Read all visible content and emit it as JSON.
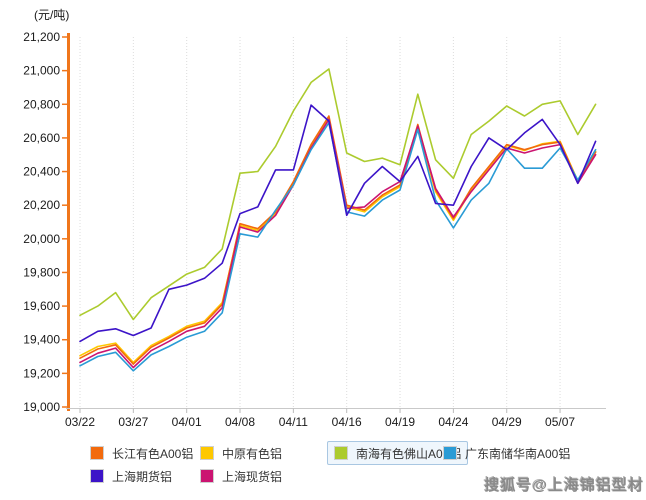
{
  "unit_label": "(元/吨)",
  "watermark": "搜狐号@上海锦铝型材",
  "axis": {
    "y_axis_color": "#F0761B",
    "x_axis_color": "#C9C9C9",
    "grid_color": "#DCDCDC",
    "text_color": "#1A1A1A"
  },
  "chart_data": {
    "type": "line",
    "title": "",
    "ylabel": "(元/吨)",
    "ylim": [
      19000,
      21200
    ],
    "ytick_step": 200,
    "y_ticks": [
      "19,000",
      "19,200",
      "19,400",
      "19,600",
      "19,800",
      "20,000",
      "20,200",
      "20,400",
      "20,600",
      "20,800",
      "21,000",
      "21,200"
    ],
    "x_labels": [
      "03/22",
      "03/27",
      "04/01",
      "04/08",
      "04/11",
      "04/16",
      "04/19",
      "04/24",
      "04/29",
      "05/07"
    ],
    "x_label_indices": [
      0,
      3,
      6,
      9,
      12,
      15,
      18,
      21,
      24,
      27
    ],
    "grid": "vertical-dotted",
    "legend_position": "bottom",
    "series": [
      {
        "name": "长江有色A00铝",
        "color": "#F26A0D",
        "highlighted": false,
        "values": [
          19290,
          19345,
          19370,
          19255,
          19355,
          19410,
          19470,
          19500,
          19610,
          20090,
          20060,
          20160,
          20340,
          20560,
          20730,
          20200,
          20170,
          20260,
          20320,
          20680,
          20290,
          20120,
          20300,
          20430,
          20560,
          20530,
          20560,
          20575,
          20340,
          20515
        ]
      },
      {
        "name": "中原有色铝",
        "color": "#FEC800",
        "highlighted": false,
        "values": [
          19305,
          19360,
          19380,
          19265,
          19365,
          19420,
          19480,
          19510,
          19620,
          20080,
          20050,
          20150,
          20330,
          20550,
          20720,
          20190,
          20160,
          20250,
          20310,
          20660,
          20280,
          20110,
          20290,
          20420,
          20555,
          20525,
          20565,
          20580,
          20345,
          20520
        ]
      },
      {
        "name": "南海有色佛山A00铝",
        "color": "#ACCB2E",
        "highlighted": true,
        "values": [
          19545,
          19600,
          19680,
          19520,
          19650,
          19720,
          19790,
          19830,
          19940,
          20390,
          20400,
          20550,
          20760,
          20930,
          21010,
          20510,
          20460,
          20480,
          20440,
          20860,
          20470,
          20360,
          20620,
          20700,
          20790,
          20730,
          20800,
          20820,
          20620,
          20800
        ]
      },
      {
        "name": "广东南储华南A00铝",
        "color": "#2A9BD5",
        "highlighted": false,
        "values": [
          19245,
          19300,
          19325,
          19215,
          19310,
          19360,
          19415,
          19450,
          19560,
          20030,
          20010,
          20170,
          20320,
          20530,
          20690,
          20160,
          20135,
          20230,
          20290,
          20650,
          20230,
          20065,
          20230,
          20330,
          20535,
          20420,
          20420,
          20540,
          20350,
          20530
        ]
      },
      {
        "name": "上海期货铝",
        "color": "#3C14C8",
        "highlighted": false,
        "values": [
          19390,
          19450,
          19465,
          19425,
          19470,
          19700,
          19725,
          19765,
          19855,
          20150,
          20190,
          20410,
          20410,
          20795,
          20700,
          20140,
          20330,
          20430,
          20340,
          20490,
          20210,
          20200,
          20430,
          20600,
          20530,
          20630,
          20710,
          20560,
          20330,
          20580
        ]
      },
      {
        "name": "上海现货铝",
        "color": "#CB1471",
        "highlighted": false,
        "values": [
          19265,
          19320,
          19350,
          19235,
          19335,
          19390,
          19450,
          19480,
          19590,
          20070,
          20040,
          20140,
          20320,
          20540,
          20710,
          20180,
          20190,
          20280,
          20340,
          20670,
          20300,
          20130,
          20280,
          20410,
          20540,
          20510,
          20540,
          20560,
          20330,
          20500
        ]
      }
    ]
  }
}
